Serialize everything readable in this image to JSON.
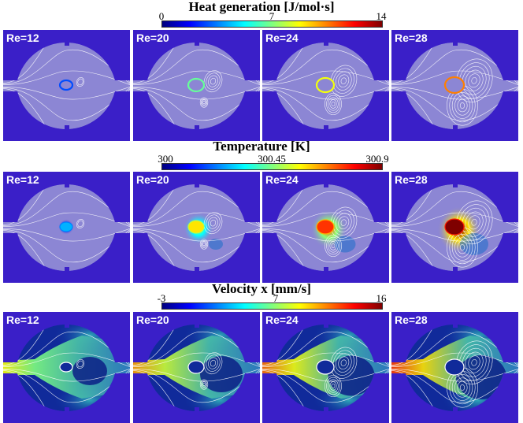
{
  "rows": [
    {
      "title": "Heat generation [J/mol·s]",
      "ticks": [
        {
          "label": "0",
          "value": 0
        },
        {
          "label": "7",
          "value": 7
        },
        {
          "label": "14",
          "value": 14
        }
      ],
      "range": [
        0,
        14
      ],
      "colormap": "jet",
      "field": "heat"
    },
    {
      "title": "Temperature [K]",
      "ticks": [
        {
          "label": "300",
          "value": 300
        },
        {
          "label": "300.45",
          "value": 300.45
        },
        {
          "label": "300.9",
          "value": 300.9
        }
      ],
      "range": [
        300,
        300.9
      ],
      "colormap": "jet",
      "field": "temperature"
    },
    {
      "title": "Velocity x [mm/s]",
      "ticks": [
        {
          "label": "-3",
          "value": -3
        },
        {
          "label": "7",
          "value": 7
        },
        {
          "label": "16",
          "value": 16
        }
      ],
      "range": [
        -3,
        16
      ],
      "colormap": "jet",
      "field": "velocity"
    }
  ],
  "cases": [
    {
      "label": "Re=12",
      "re": 12
    },
    {
      "label": "Re=20",
      "re": 20
    },
    {
      "label": "Re=24",
      "re": 24
    },
    {
      "label": "Re=28",
      "re": 28
    }
  ],
  "colors": {
    "background": "#3a1fc8",
    "chamber": "#8c86d4",
    "streamline": "#ffffff"
  }
}
